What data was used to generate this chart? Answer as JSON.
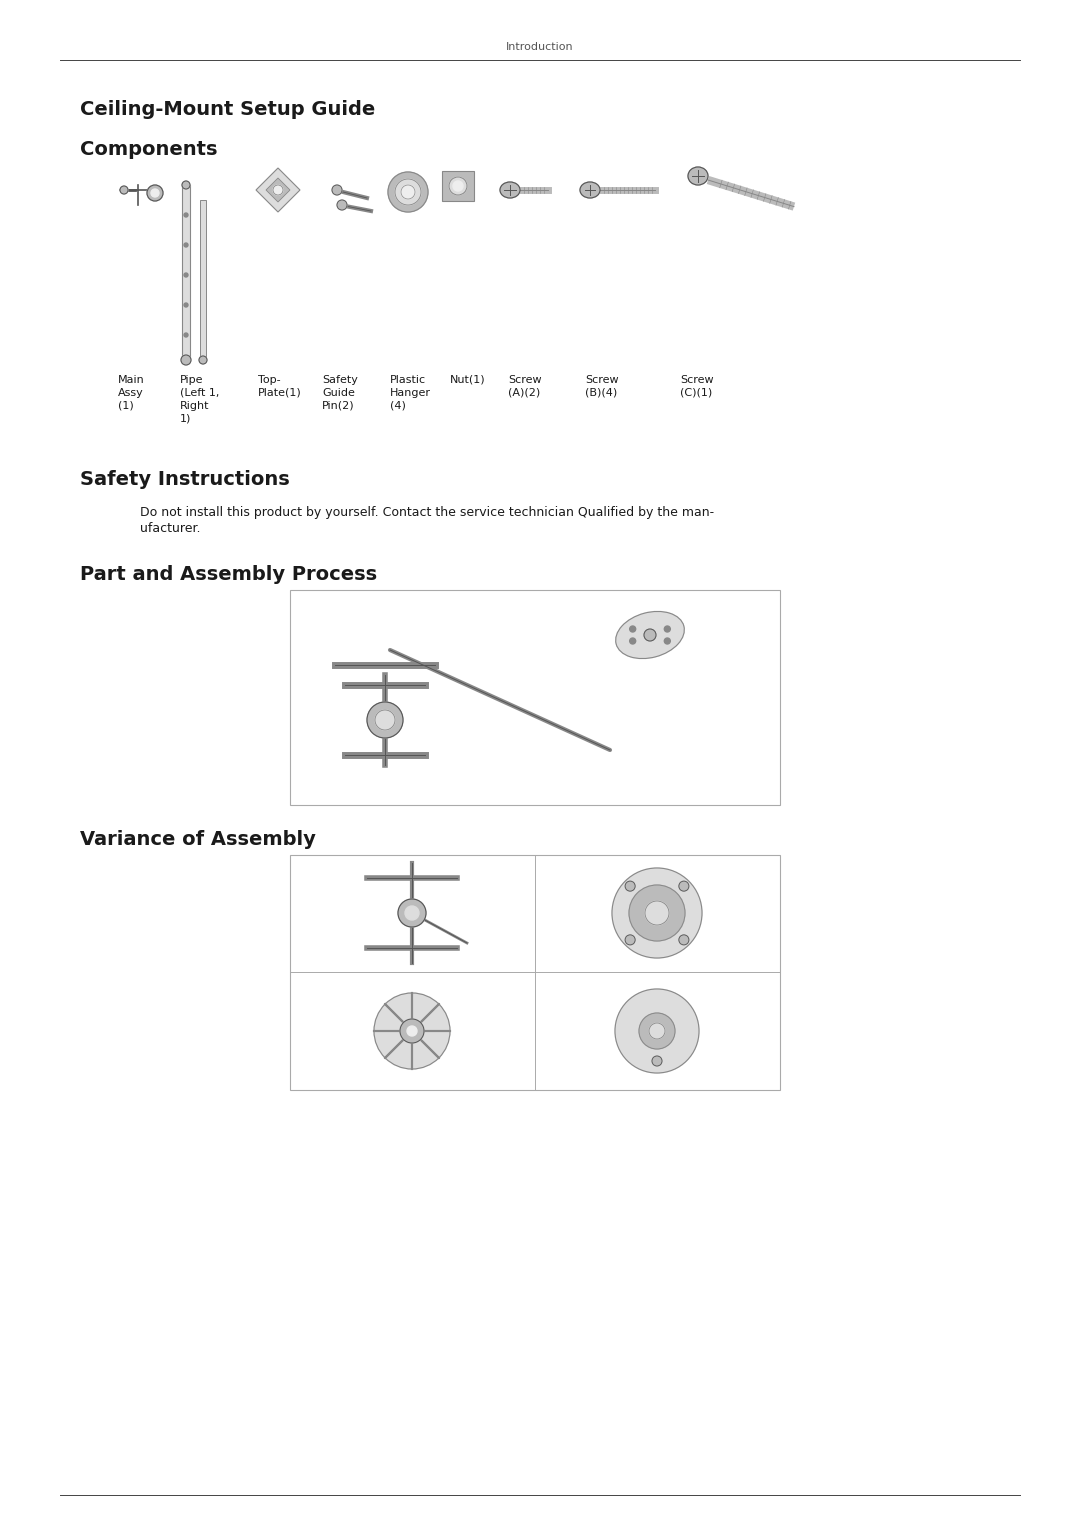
{
  "bg_color": "#ffffff",
  "header_text": "Introduction",
  "header_line_color": "#444444",
  "title1": "Ceiling-Mount Setup Guide",
  "title2": "Components",
  "title3": "Safety Instructions",
  "title4": "Part and Assembly Process",
  "title5": "Variance of Assembly",
  "safety_line1": "Do not install this product by yourself. Contact the service technician Qualified by the man-",
  "safety_line2": "ufacturer.",
  "label_texts": [
    "Main\nAssy\n(1)",
    "Pipe\n(Left 1,\nRight\n1)",
    "Top-\nPlate(1)",
    "Safety\nGuide\nPin(2)",
    "Plastic\nHanger\n(4)",
    "Nut(1)",
    "Screw\n(A)(2)",
    "Screw\n(B)(4)",
    "Screw\n(C)(1)"
  ],
  "footer_line_color": "#444444",
  "font_color": "#1a1a1a",
  "gray_dark": "#555555",
  "gray_mid": "#888888",
  "gray_light": "#bbbbbb",
  "gray_fill": "#cccccc",
  "gray_lighter": "#dddddd",
  "gray_box": "#eeeeee",
  "title_fontsize": 14,
  "header_fontsize": 8,
  "body_fontsize": 9,
  "label_fontsize": 8
}
